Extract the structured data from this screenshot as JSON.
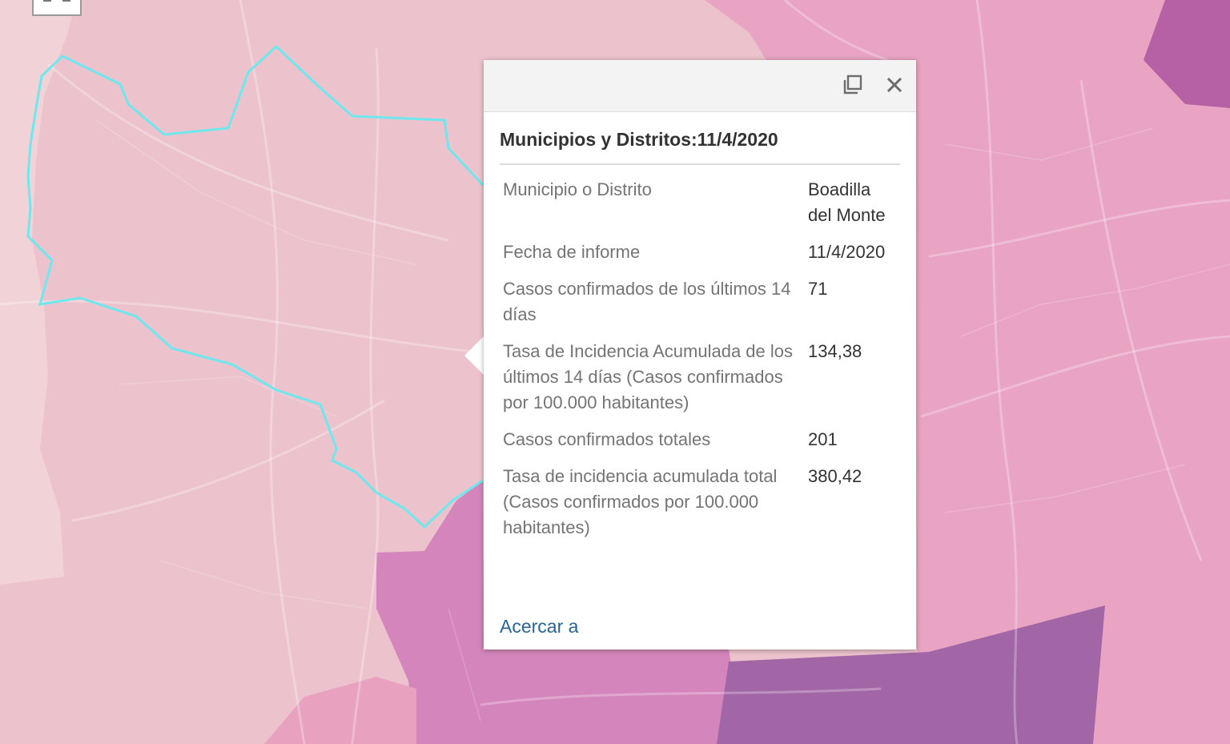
{
  "popup": {
    "title": "Municipios y Distritos:11/4/2020",
    "rows": [
      {
        "label": "Municipio o Distrito",
        "value": "Boadilla del Monte"
      },
      {
        "label": "Fecha de informe",
        "value": "11/4/2020"
      },
      {
        "label": "Casos confirmados de los últimos 14 días",
        "value": "71"
      },
      {
        "label": "Tasa de Incidencia Acumulada de los últimos 14 días (Casos confirmados por 100.000 habitantes)",
        "value": "134,38"
      },
      {
        "label": "Casos confirmados totales",
        "value": "201"
      },
      {
        "label": "Tasa de incidencia acumulada total (Casos confirmados por 100.000 habitantes)",
        "value": "380,42"
      }
    ],
    "zoom_label": "Acercar a"
  },
  "icons": {
    "maximize": "maximize-icon",
    "close": "close-icon"
  },
  "colors": {
    "highlight": "#6ee8ee",
    "light": "#ecc3cd",
    "mid": "#e6a2c0",
    "strong": "#d485bb",
    "dark": "#a266a6",
    "link": "#2a6496"
  }
}
